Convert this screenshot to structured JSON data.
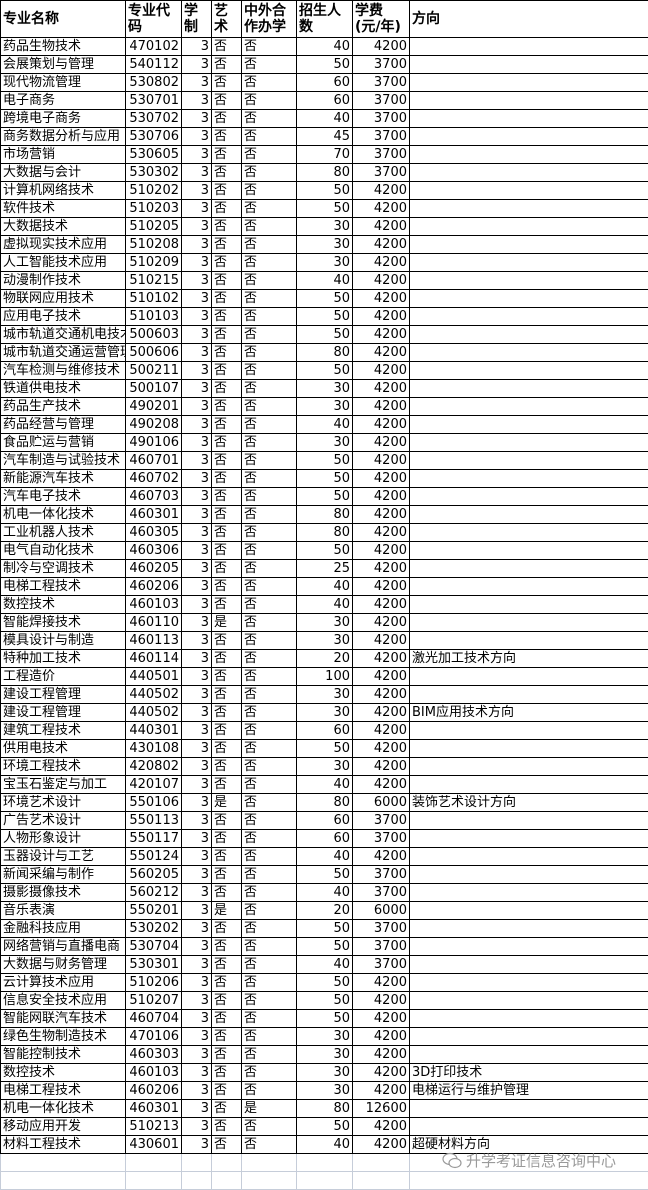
{
  "table": {
    "headers": [
      "专业名称",
      "专业代码",
      "学制",
      "艺术",
      "中外合作办学",
      "招生人数",
      "学费(元/年)",
      "方向"
    ],
    "rows": [
      [
        "药品生物技术",
        "470102",
        "3",
        "否",
        "否",
        "40",
        "4200",
        ""
      ],
      [
        "会展策划与管理",
        "540112",
        "3",
        "否",
        "否",
        "50",
        "3700",
        ""
      ],
      [
        "现代物流管理",
        "530802",
        "3",
        "否",
        "否",
        "60",
        "3700",
        ""
      ],
      [
        "电子商务",
        "530701",
        "3",
        "否",
        "否",
        "60",
        "3700",
        ""
      ],
      [
        "跨境电子商务",
        "530702",
        "3",
        "否",
        "否",
        "40",
        "3700",
        ""
      ],
      [
        "商务数据分析与应用",
        "530706",
        "3",
        "否",
        "否",
        "45",
        "3700",
        ""
      ],
      [
        "市场营销",
        "530605",
        "3",
        "否",
        "否",
        "70",
        "3700",
        ""
      ],
      [
        "大数据与会计",
        "530302",
        "3",
        "否",
        "否",
        "80",
        "3700",
        ""
      ],
      [
        "计算机网络技术",
        "510202",
        "3",
        "否",
        "否",
        "50",
        "4200",
        ""
      ],
      [
        "软件技术",
        "510203",
        "3",
        "否",
        "否",
        "50",
        "4200",
        ""
      ],
      [
        "大数据技术",
        "510205",
        "3",
        "否",
        "否",
        "30",
        "4200",
        ""
      ],
      [
        "虚拟现实技术应用",
        "510208",
        "3",
        "否",
        "否",
        "30",
        "4200",
        ""
      ],
      [
        "人工智能技术应用",
        "510209",
        "3",
        "否",
        "否",
        "30",
        "4200",
        ""
      ],
      [
        "动漫制作技术",
        "510215",
        "3",
        "否",
        "否",
        "40",
        "4200",
        ""
      ],
      [
        "物联网应用技术",
        "510102",
        "3",
        "否",
        "否",
        "50",
        "4200",
        ""
      ],
      [
        "应用电子技术",
        "510103",
        "3",
        "否",
        "否",
        "50",
        "4200",
        ""
      ],
      [
        "城市轨道交通机电技术",
        "500603",
        "3",
        "否",
        "否",
        "50",
        "4200",
        ""
      ],
      [
        "城市轨道交通运营管理",
        "500606",
        "3",
        "否",
        "否",
        "80",
        "4200",
        ""
      ],
      [
        "汽车检测与维修技术",
        "500211",
        "3",
        "否",
        "否",
        "50",
        "4200",
        ""
      ],
      [
        "铁道供电技术",
        "500107",
        "3",
        "否",
        "否",
        "30",
        "4200",
        ""
      ],
      [
        "药品生产技术",
        "490201",
        "3",
        "否",
        "否",
        "30",
        "4200",
        ""
      ],
      [
        "药品经营与管理",
        "490208",
        "3",
        "否",
        "否",
        "40",
        "4200",
        ""
      ],
      [
        "食品贮运与营销",
        "490106",
        "3",
        "否",
        "否",
        "30",
        "4200",
        ""
      ],
      [
        "汽车制造与试验技术",
        "460701",
        "3",
        "否",
        "否",
        "50",
        "4200",
        ""
      ],
      [
        "新能源汽车技术",
        "460702",
        "3",
        "否",
        "否",
        "50",
        "4200",
        ""
      ],
      [
        "汽车电子技术",
        "460703",
        "3",
        "否",
        "否",
        "50",
        "4200",
        ""
      ],
      [
        "机电一体化技术",
        "460301",
        "3",
        "否",
        "否",
        "80",
        "4200",
        ""
      ],
      [
        "工业机器人技术",
        "460305",
        "3",
        "否",
        "否",
        "80",
        "4200",
        ""
      ],
      [
        "电气自动化技术",
        "460306",
        "3",
        "否",
        "否",
        "50",
        "4200",
        ""
      ],
      [
        "制冷与空调技术",
        "460205",
        "3",
        "否",
        "否",
        "25",
        "4200",
        ""
      ],
      [
        "电梯工程技术",
        "460206",
        "3",
        "否",
        "否",
        "40",
        "4200",
        ""
      ],
      [
        "数控技术",
        "460103",
        "3",
        "否",
        "否",
        "40",
        "4200",
        ""
      ],
      [
        "智能焊接技术",
        "460110",
        "3",
        "是",
        "否",
        "30",
        "4200",
        ""
      ],
      [
        "模具设计与制造",
        "460113",
        "3",
        "否",
        "否",
        "30",
        "4200",
        ""
      ],
      [
        "特种加工技术",
        "460114",
        "3",
        "否",
        "否",
        "20",
        "4200",
        "激光加工技术方向"
      ],
      [
        "工程造价",
        "440501",
        "3",
        "否",
        "否",
        "100",
        "4200",
        ""
      ],
      [
        "建设工程管理",
        "440502",
        "3",
        "否",
        "否",
        "30",
        "4200",
        ""
      ],
      [
        "建设工程管理",
        "440502",
        "3",
        "否",
        "否",
        "30",
        "4200",
        "BIM应用技术方向"
      ],
      [
        "建筑工程技术",
        "440301",
        "3",
        "否",
        "否",
        "60",
        "4200",
        ""
      ],
      [
        "供用电技术",
        "430108",
        "3",
        "否",
        "否",
        "50",
        "4200",
        ""
      ],
      [
        "环境工程技术",
        "420802",
        "3",
        "否",
        "否",
        "30",
        "4200",
        ""
      ],
      [
        "宝玉石鉴定与加工",
        "420107",
        "3",
        "否",
        "否",
        "40",
        "4200",
        ""
      ],
      [
        "环境艺术设计",
        "550106",
        "3",
        "是",
        "否",
        "80",
        "6000",
        "装饰艺术设计方向"
      ],
      [
        "广告艺术设计",
        "550113",
        "3",
        "否",
        "否",
        "60",
        "3700",
        ""
      ],
      [
        "人物形象设计",
        "550117",
        "3",
        "否",
        "否",
        "60",
        "3700",
        ""
      ],
      [
        "玉器设计与工艺",
        "550124",
        "3",
        "否",
        "否",
        "40",
        "4200",
        ""
      ],
      [
        "新闻采编与制作",
        "560205",
        "3",
        "否",
        "否",
        "50",
        "3700",
        ""
      ],
      [
        "摄影摄像技术",
        "560212",
        "3",
        "否",
        "否",
        "40",
        "3700",
        ""
      ],
      [
        "音乐表演",
        "550201",
        "3",
        "是",
        "否",
        "20",
        "6000",
        ""
      ],
      [
        "金融科技应用",
        "530202",
        "3",
        "否",
        "否",
        "50",
        "3700",
        ""
      ],
      [
        "网络营销与直播电商",
        "530704",
        "3",
        "否",
        "否",
        "50",
        "3700",
        ""
      ],
      [
        "大数据与财务管理",
        "530301",
        "3",
        "否",
        "否",
        "40",
        "3700",
        ""
      ],
      [
        "云计算技术应用",
        "510206",
        "3",
        "否",
        "否",
        "50",
        "4200",
        ""
      ],
      [
        "信息安全技术应用",
        "510207",
        "3",
        "否",
        "否",
        "50",
        "4200",
        ""
      ],
      [
        "智能网联汽车技术",
        "460704",
        "3",
        "否",
        "否",
        "50",
        "4200",
        ""
      ],
      [
        "绿色生物制造技术",
        "470106",
        "3",
        "否",
        "否",
        "30",
        "4200",
        ""
      ],
      [
        "智能控制技术",
        "460303",
        "3",
        "否",
        "否",
        "30",
        "4200",
        ""
      ],
      [
        "数控技术",
        "460103",
        "3",
        "否",
        "否",
        "30",
        "4200",
        "3D打印技术"
      ],
      [
        "电梯工程技术",
        "460206",
        "3",
        "否",
        "否",
        "30",
        "4200",
        "电梯运行与维护管理"
      ],
      [
        "机电一体化技术",
        "460301",
        "3",
        "否",
        "是",
        "80",
        "12600",
        ""
      ],
      [
        "移动应用开发",
        "510213",
        "3",
        "否",
        "否",
        "50",
        "4200",
        ""
      ],
      [
        "材料工程技术",
        "430601",
        "3",
        "否",
        "否",
        "40",
        "4200",
        "超硬材料方向"
      ]
    ]
  },
  "watermark": {
    "text": "升学考证信息咨询中心",
    "icon": "wechat-icon"
  }
}
